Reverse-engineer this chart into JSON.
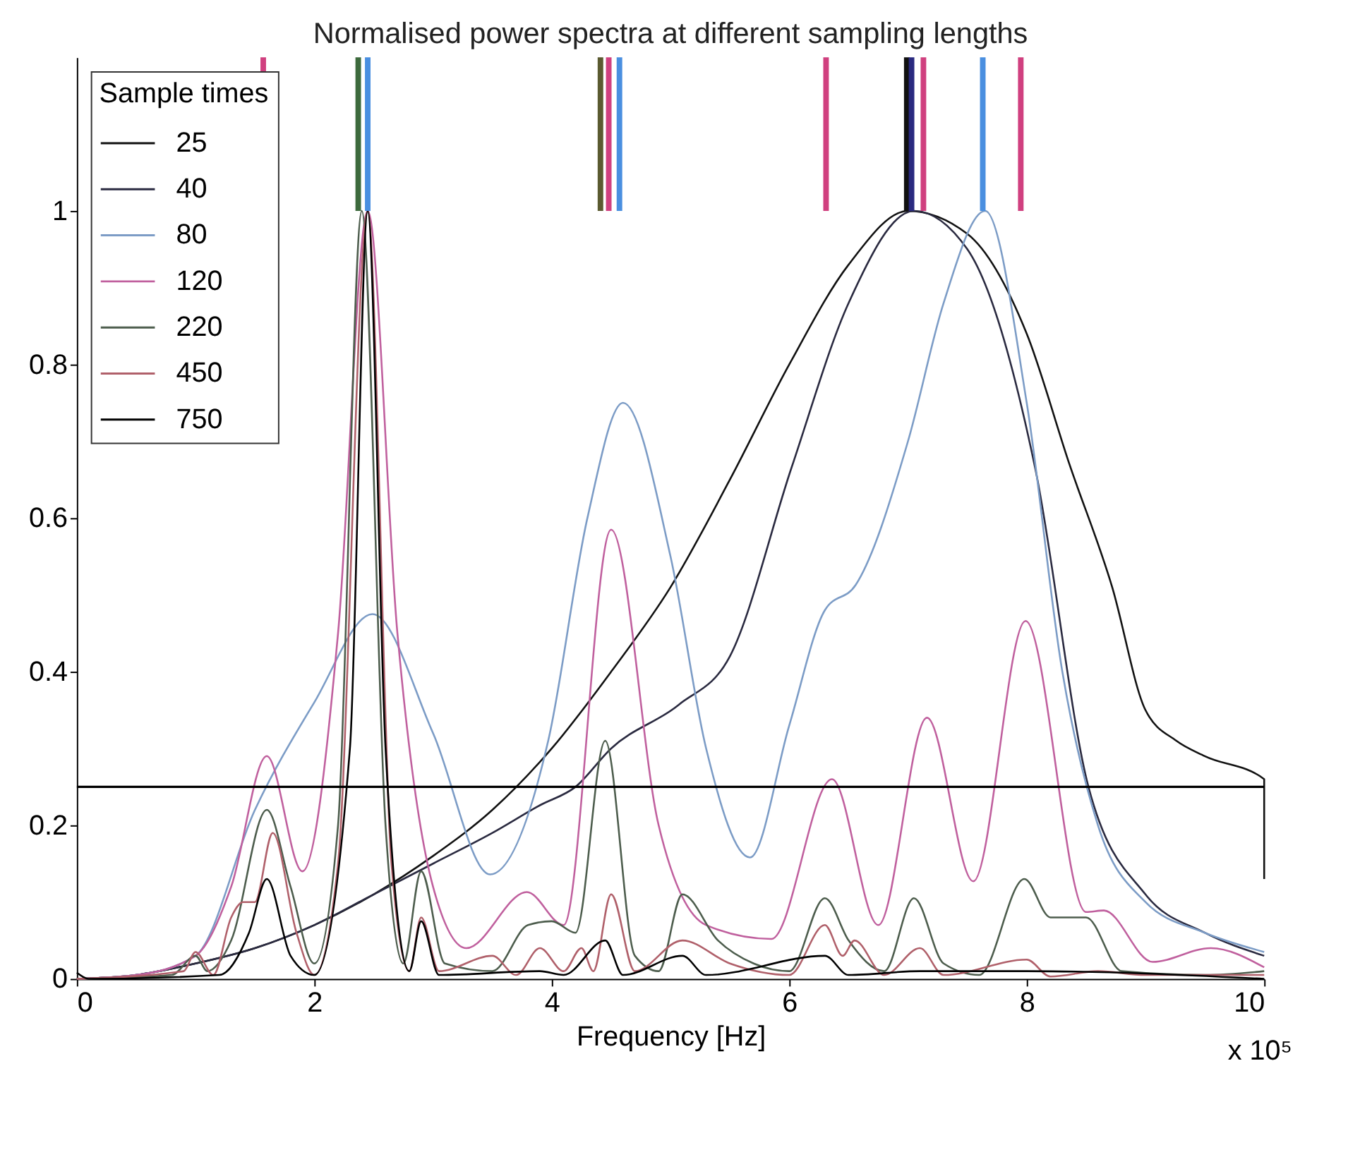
{
  "chart_data": {
    "type": "line",
    "title": "Normalised power spectra at different sampling lengths",
    "xlabel": "Frequency [Hz]",
    "legend_title": "Sample times",
    "legend": "top left",
    "grid": false,
    "marker": "none",
    "line_style": "solid",
    "xlim": [
      0,
      10
    ],
    "xticks": [
      0,
      2,
      4,
      6,
      8,
      10
    ],
    "ylim": [
      0,
      1.2
    ],
    "yticks": [
      0,
      0.2,
      0.4,
      0.6,
      0.8,
      1
    ],
    "annotations": [
      "x 10⁵"
    ],
    "series": [
      {
        "name": "25",
        "color": "#111111",
        "x": [
          0,
          0.5,
          1,
          1.5,
          2,
          2.5,
          3,
          3.5,
          4,
          4.5,
          5,
          5.5,
          6,
          6.5,
          7,
          7.5,
          8,
          8.36,
          8.72,
          9,
          9.26,
          9.5,
          10,
          10
        ],
        "values": [
          0,
          0.005,
          0.02,
          0.04,
          0.07,
          0.11,
          0.16,
          0.22,
          0.3,
          0.4,
          0.51,
          0.65,
          0.8,
          0.93,
          1.0,
          0.97,
          0.84,
          0.67,
          0.51,
          0.35,
          0.31,
          0.29,
          0.26,
          0.13
        ]
      },
      {
        "name": "40",
        "color": "#2a2a40",
        "x": [
          0,
          0.5,
          1,
          1.5,
          2,
          2.5,
          3,
          3.5,
          3.9,
          4.2,
          4.5,
          5.07,
          5.5,
          6.02,
          6.5,
          7.05,
          7.5,
          8.07,
          8.52,
          9,
          9.5,
          10
        ],
        "values": [
          0,
          0.005,
          0.02,
          0.04,
          0.07,
          0.11,
          0.15,
          0.19,
          0.226,
          0.25,
          0.3,
          0.357,
          0.42,
          0.666,
          0.88,
          1.0,
          0.95,
          0.666,
          0.25,
          0.11,
          0.06,
          0.03
        ]
      },
      {
        "name": "80",
        "color": "#7c9cc6",
        "x": [
          0,
          0.5,
          1,
          1.5,
          2,
          2.49,
          3,
          3.48,
          3.97,
          4.3,
          4.6,
          5,
          5.3,
          5.67,
          6,
          6.3,
          6.56,
          7,
          7.3,
          7.65,
          8,
          8.3,
          8.6,
          9,
          9.5,
          10
        ],
        "values": [
          0,
          0.005,
          0.03,
          0.22,
          0.36,
          0.475,
          0.32,
          0.136,
          0.31,
          0.6,
          0.75,
          0.55,
          0.3,
          0.158,
          0.33,
          0.48,
          0.513,
          0.7,
          0.88,
          1.0,
          0.75,
          0.4,
          0.2,
          0.1,
          0.06,
          0.035
        ]
      },
      {
        "name": "120",
        "color": "#c0609e",
        "x": [
          0,
          0.5,
          1,
          1.3,
          1.6,
          1.9,
          2.2,
          2.45,
          2.7,
          3.0,
          3.28,
          3.79,
          4.1,
          4.5,
          4.9,
          5.3,
          5.85,
          6.36,
          6.75,
          7.16,
          7.55,
          7.99,
          8.5,
          8.65,
          9.06,
          9.55,
          10
        ],
        "values": [
          0,
          0.005,
          0.03,
          0.12,
          0.29,
          0.14,
          0.45,
          1.0,
          0.45,
          0.12,
          0.04,
          0.113,
          0.07,
          0.585,
          0.2,
          0.07,
          0.052,
          0.26,
          0.07,
          0.34,
          0.127,
          0.466,
          0.087,
          0.089,
          0.022,
          0.04,
          0.015
        ]
      },
      {
        "name": "220",
        "color": "#4d5d4d",
        "x": [
          0,
          0.8,
          1,
          1.1,
          1.3,
          1.6,
          1.8,
          2,
          2.2,
          2.4,
          2.6,
          2.75,
          2.9,
          3.1,
          3.5,
          3.8,
          4,
          4.2,
          4.45,
          4.7,
          4.9,
          5.1,
          5.4,
          5.7,
          6,
          6.3,
          6.5,
          6.8,
          7.05,
          7.3,
          7.6,
          7.98,
          8.2,
          8.5,
          8.8,
          9.5,
          10
        ],
        "values": [
          0,
          0.005,
          0.03,
          0.01,
          0.05,
          0.22,
          0.12,
          0.02,
          0.2,
          1.0,
          0.2,
          0.02,
          0.14,
          0.02,
          0.01,
          0.07,
          0.075,
          0.06,
          0.31,
          0.03,
          0.01,
          0.11,
          0.05,
          0.02,
          0.01,
          0.105,
          0.05,
          0.01,
          0.105,
          0.02,
          0.005,
          0.13,
          0.08,
          0.08,
          0.01,
          0.005,
          0.01
        ]
      },
      {
        "name": "450",
        "color": "#b0606a",
        "x": [
          0,
          0.9,
          1,
          1.15,
          1.3,
          1.4,
          1.5,
          1.65,
          1.85,
          2,
          2.2,
          2.45,
          2.65,
          2.8,
          2.9,
          3.05,
          3.5,
          3.7,
          3.9,
          4.1,
          4.25,
          4.35,
          4.5,
          4.7,
          5.1,
          5.5,
          6,
          6.3,
          6.45,
          6.55,
          6.8,
          7.1,
          7.3,
          8,
          8.2,
          8.6,
          9,
          10
        ],
        "values": [
          0,
          0.01,
          0.035,
          0.005,
          0.08,
          0.1,
          0.1,
          0.19,
          0.06,
          0.005,
          0.15,
          1.0,
          0.15,
          0.01,
          0.08,
          0.01,
          0.03,
          0.005,
          0.04,
          0.01,
          0.04,
          0.01,
          0.11,
          0.01,
          0.05,
          0.02,
          0.005,
          0.07,
          0.03,
          0.05,
          0.005,
          0.04,
          0.005,
          0.025,
          0.003,
          0.01,
          0.005,
          0.005
        ]
      },
      {
        "name": "750",
        "color": "#000000",
        "x": [
          0,
          0.1,
          1.2,
          1.45,
          1.6,
          1.8,
          2,
          2.3,
          2.45,
          2.6,
          2.8,
          2.9,
          3.05,
          3.9,
          4.1,
          4.45,
          4.6,
          5.1,
          5.3,
          6.3,
          6.5,
          7.1,
          8,
          10
        ],
        "values": [
          0.008,
          0,
          0.005,
          0.06,
          0.13,
          0.03,
          0.005,
          0.3,
          1.0,
          0.3,
          0.01,
          0.075,
          0.005,
          0.01,
          0.005,
          0.05,
          0.005,
          0.03,
          0.005,
          0.03,
          0.005,
          0.01,
          0.01,
          0
        ]
      }
    ],
    "ref_lines": [
      {
        "axis": "y",
        "value": 0.25,
        "color": "#000000"
      },
      {
        "axis": "x",
        "value": 1.57,
        "color": "#d0407f"
      },
      {
        "axis": "x",
        "value": 2.37,
        "color": "#3d6a3d"
      },
      {
        "axis": "x",
        "value": 2.45,
        "color": "#4a8fe0"
      },
      {
        "axis": "x",
        "value": 4.41,
        "color": "#5a5a30"
      },
      {
        "axis": "x",
        "value": 4.48,
        "color": "#d0407f"
      },
      {
        "axis": "x",
        "value": 4.57,
        "color": "#4a8fe0"
      },
      {
        "axis": "x",
        "value": 6.31,
        "color": "#d0407f"
      },
      {
        "axis": "x",
        "value": 6.99,
        "color": "#111111"
      },
      {
        "axis": "x",
        "value": 7.03,
        "color": "#2a2a80"
      },
      {
        "axis": "x",
        "value": 7.13,
        "color": "#d0407f"
      },
      {
        "axis": "x",
        "value": 7.63,
        "color": "#4a8fe0"
      },
      {
        "axis": "x",
        "value": 7.95,
        "color": "#d0407f"
      }
    ]
  }
}
